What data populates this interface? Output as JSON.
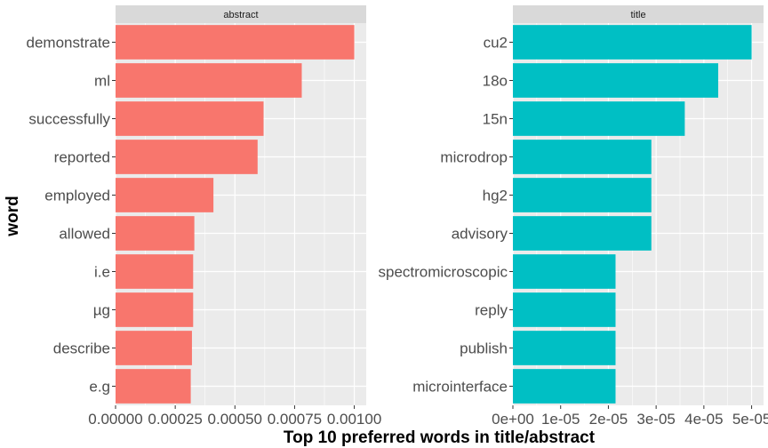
{
  "chart_data": {
    "type": "bar",
    "orientation": "horizontal",
    "xlabel": "Top 10 preferred words in title/abstract",
    "ylabel": "word",
    "grid": true,
    "legend": "none",
    "panels": [
      {
        "name": "abstract",
        "color": "#F8766D",
        "categories": [
          "demonstrate",
          "ml",
          "successfully",
          "reported",
          "employed",
          "allowed",
          "i.e",
          "µg",
          "describe",
          "e.g"
        ],
        "values": [
          0.001,
          0.00078,
          0.00062,
          0.000595,
          0.00041,
          0.00033,
          0.000325,
          0.000325,
          0.00032,
          0.000315
        ],
        "xlim": [
          0,
          0.00105
        ],
        "ticks": [
          0,
          0.00025,
          0.0005,
          0.00075,
          0.001
        ],
        "tick_labels": [
          "0.00000",
          "0.00025",
          "0.00050",
          "0.00075",
          "0.00100"
        ]
      },
      {
        "name": "title",
        "color": "#00BFC4",
        "categories": [
          "cu2",
          "18o",
          "15n",
          "microdrop",
          "hg2",
          "advisory",
          "spectromicroscopic",
          "reply",
          "publish",
          "microinterface"
        ],
        "values": [
          5e-05,
          4.3e-05,
          3.6e-05,
          2.9e-05,
          2.9e-05,
          2.9e-05,
          2.15e-05,
          2.15e-05,
          2.15e-05,
          2.15e-05
        ],
        "xlim": [
          0,
          5.25e-05
        ],
        "ticks": [
          0,
          1e-05,
          2e-05,
          3e-05,
          4e-05,
          5e-05
        ],
        "tick_labels": [
          "0e+00",
          "1e-05",
          "2e-05",
          "3e-05",
          "4e-05",
          "5e-05"
        ]
      }
    ]
  }
}
